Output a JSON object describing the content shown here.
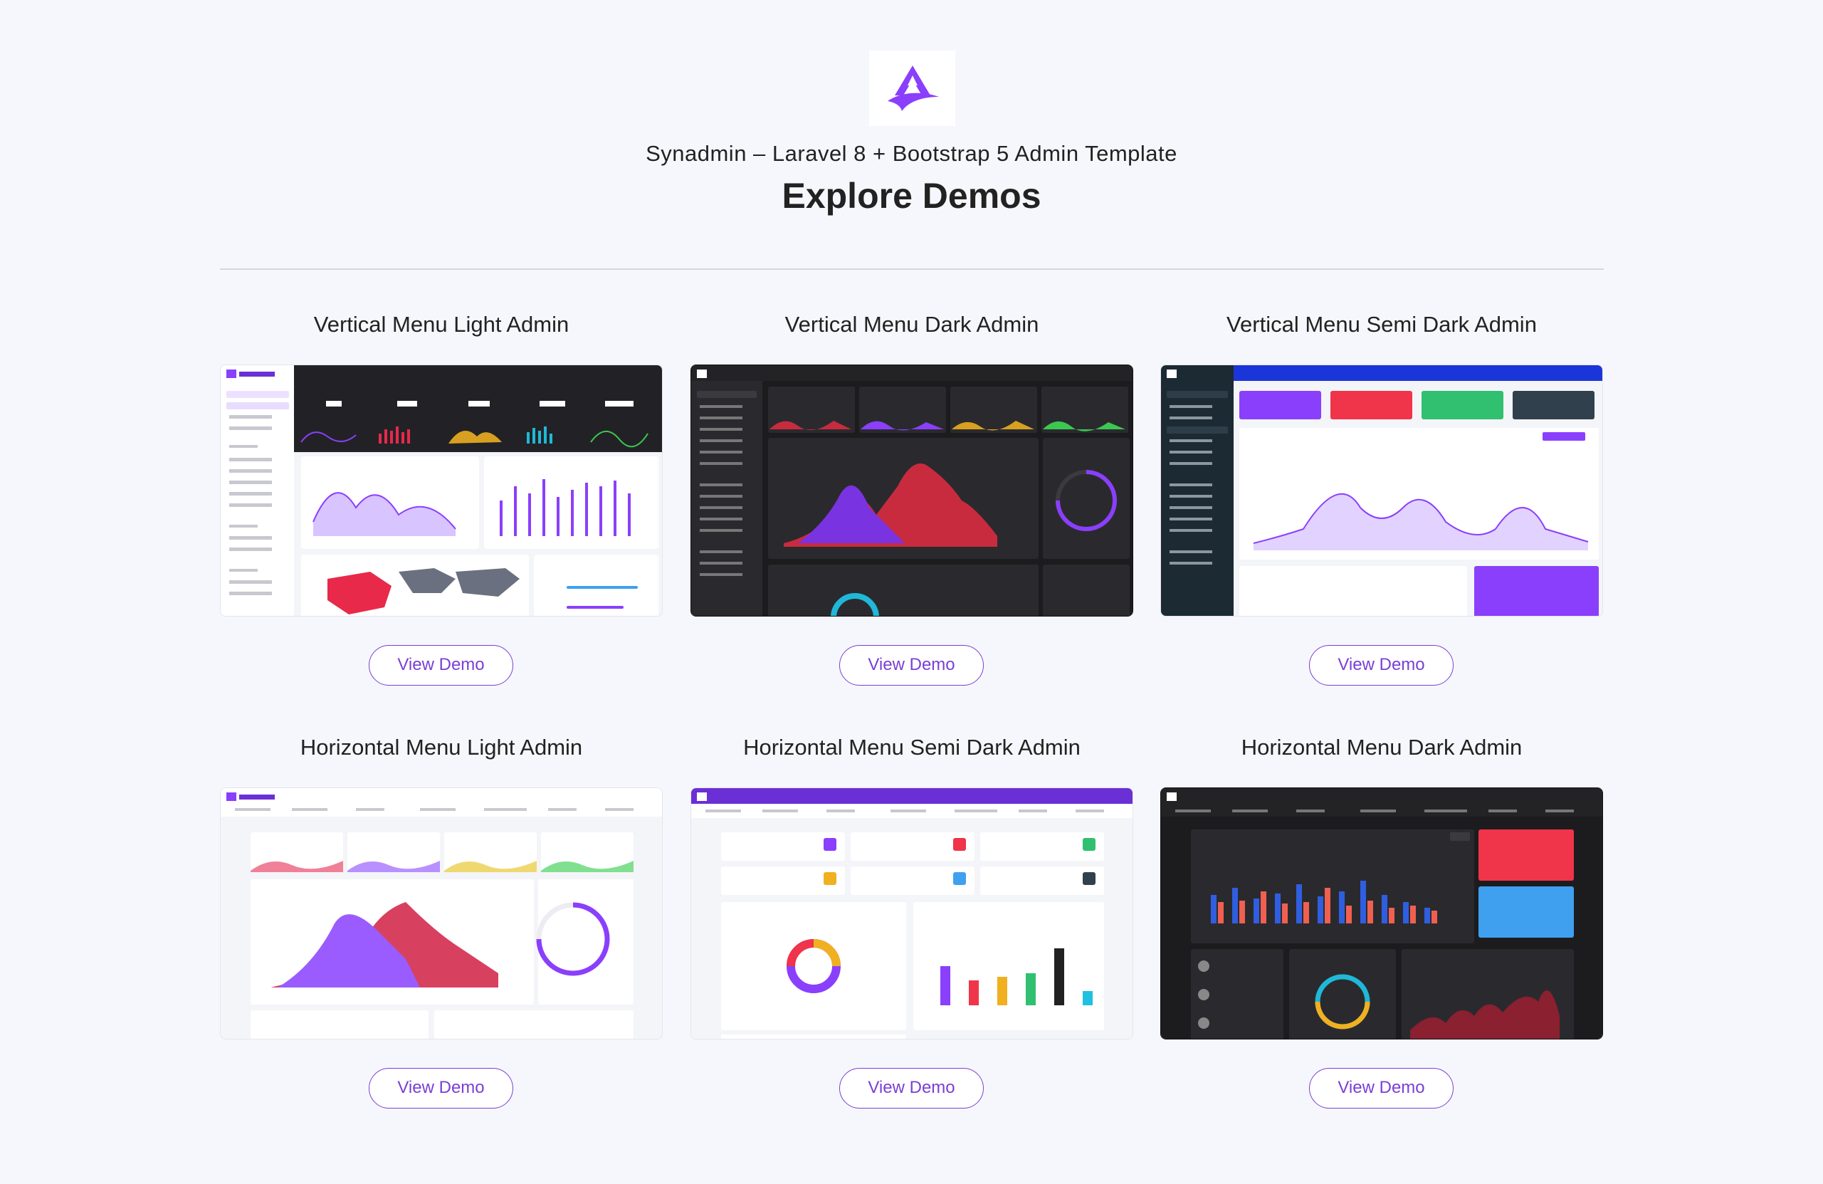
{
  "header": {
    "subtitle": "Synadmin – Laravel 8 + Bootstrap 5 Admin Template",
    "title": "Explore Demos"
  },
  "brand_color": "#8a3ffc",
  "demos": [
    {
      "title": "Vertical Menu Light Admin",
      "button": "View Demo",
      "theme": "vertical-light"
    },
    {
      "title": "Vertical Menu Dark Admin",
      "button": "View Demo",
      "theme": "vertical-dark"
    },
    {
      "title": "Vertical Menu Semi Dark Admin",
      "button": "View Demo",
      "theme": "vertical-semi-dark"
    },
    {
      "title": "Horizontal Menu Light Admin",
      "button": "View Demo",
      "theme": "horizontal-light"
    },
    {
      "title": "Horizontal Menu Semi Dark Admin",
      "button": "View Demo",
      "theme": "horizontal-semi-dark"
    },
    {
      "title": "Horizontal Menu Dark Admin",
      "button": "View Demo",
      "theme": "horizontal-dark"
    }
  ]
}
